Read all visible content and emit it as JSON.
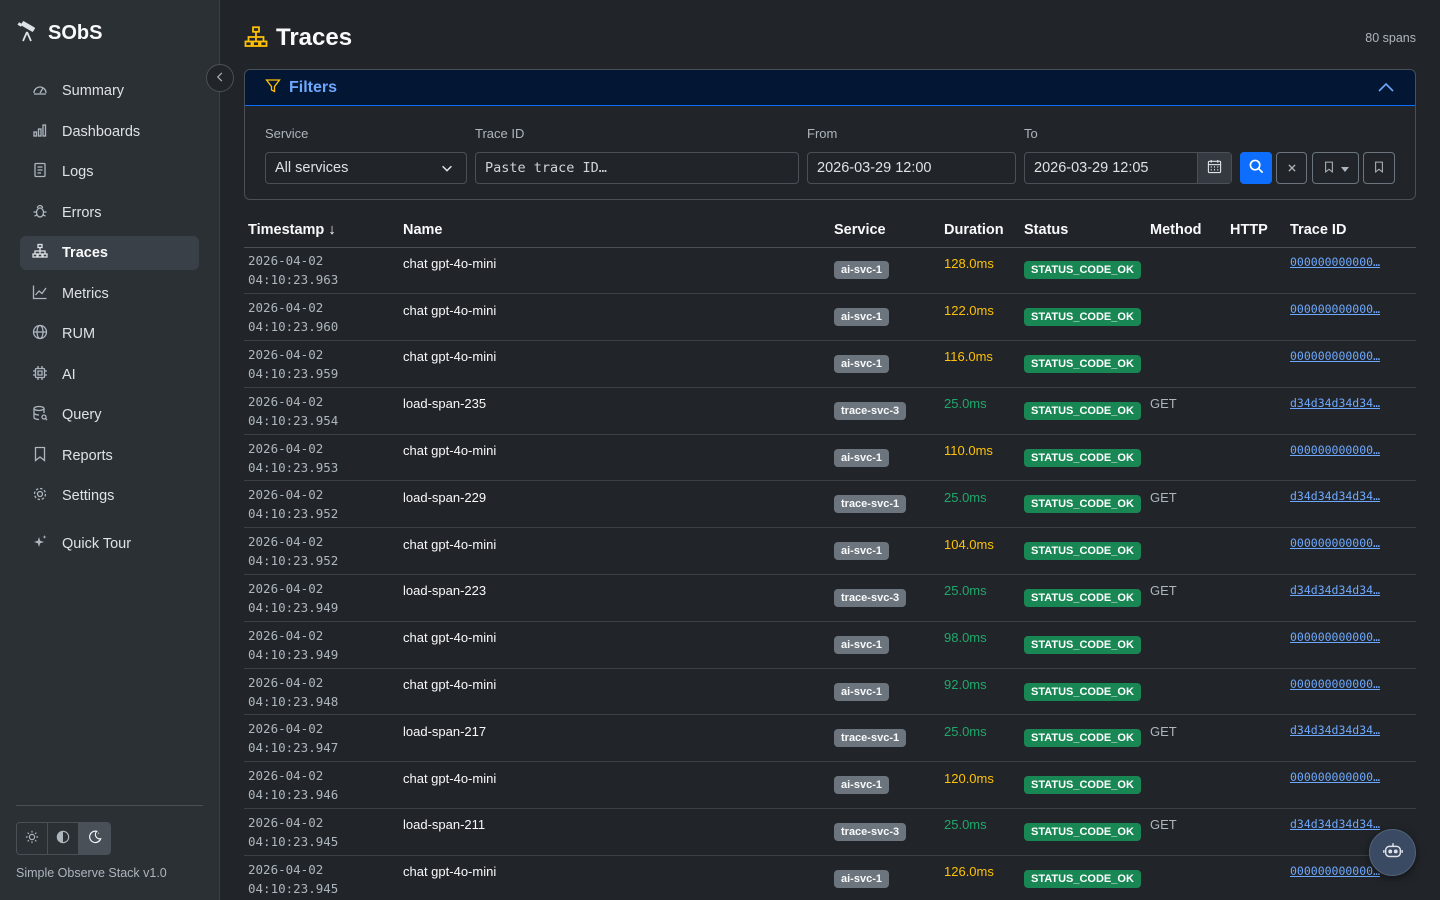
{
  "app": {
    "name": "SObS",
    "version": "Simple Observe Stack v1.0"
  },
  "sidebar": {
    "items": [
      {
        "label": "Summary",
        "icon": "gauge-icon"
      },
      {
        "label": "Dashboards",
        "icon": "bar-chart-icon"
      },
      {
        "label": "Logs",
        "icon": "file-text-icon"
      },
      {
        "label": "Errors",
        "icon": "bug-icon"
      },
      {
        "label": "Traces",
        "icon": "diagram-icon",
        "active": true
      },
      {
        "label": "Metrics",
        "icon": "graph-up-icon"
      },
      {
        "label": "RUM",
        "icon": "globe-icon"
      },
      {
        "label": "AI",
        "icon": "cpu-icon"
      },
      {
        "label": "Query",
        "icon": "database-icon"
      },
      {
        "label": "Reports",
        "icon": "bookmark-icon"
      },
      {
        "label": "Settings",
        "icon": "gear-icon"
      }
    ],
    "quick_tour": "Quick Tour"
  },
  "page": {
    "title": "Traces",
    "span_count": "80 spans"
  },
  "filters": {
    "title": "Filters",
    "service": {
      "label": "Service",
      "value": "All services"
    },
    "trace_id": {
      "label": "Trace ID",
      "placeholder": "Paste trace ID…"
    },
    "from": {
      "label": "From",
      "value": "2026-03-29 12:00"
    },
    "to": {
      "label": "To",
      "value": "2026-03-29 12:05"
    }
  },
  "table": {
    "columns": [
      "Timestamp ↓",
      "Name",
      "Service",
      "Duration",
      "Status",
      "Method",
      "HTTP",
      "Trace ID"
    ],
    "rows": [
      {
        "date": "2026-04-02",
        "time": "04:10:23.963",
        "name": "chat gpt-4o-mini",
        "service": "ai-svc-1",
        "duration": "128.0ms",
        "slow": true,
        "status": "STATUS_CODE_OK",
        "method": "",
        "http": "",
        "trace_id": "000000000000…"
      },
      {
        "date": "2026-04-02",
        "time": "04:10:23.960",
        "name": "chat gpt-4o-mini",
        "service": "ai-svc-1",
        "duration": "122.0ms",
        "slow": true,
        "status": "STATUS_CODE_OK",
        "method": "",
        "http": "",
        "trace_id": "000000000000…"
      },
      {
        "date": "2026-04-02",
        "time": "04:10:23.959",
        "name": "chat gpt-4o-mini",
        "service": "ai-svc-1",
        "duration": "116.0ms",
        "slow": true,
        "status": "STATUS_CODE_OK",
        "method": "",
        "http": "",
        "trace_id": "000000000000…"
      },
      {
        "date": "2026-04-02",
        "time": "04:10:23.954",
        "name": "load-span-235",
        "service": "trace-svc-3",
        "duration": "25.0ms",
        "slow": false,
        "status": "STATUS_CODE_OK",
        "method": "GET",
        "http": "",
        "trace_id": "d34d34d34d34…"
      },
      {
        "date": "2026-04-02",
        "time": "04:10:23.953",
        "name": "chat gpt-4o-mini",
        "service": "ai-svc-1",
        "duration": "110.0ms",
        "slow": true,
        "status": "STATUS_CODE_OK",
        "method": "",
        "http": "",
        "trace_id": "000000000000…"
      },
      {
        "date": "2026-04-02",
        "time": "04:10:23.952",
        "name": "load-span-229",
        "service": "trace-svc-1",
        "duration": "25.0ms",
        "slow": false,
        "status": "STATUS_CODE_OK",
        "method": "GET",
        "http": "",
        "trace_id": "d34d34d34d34…"
      },
      {
        "date": "2026-04-02",
        "time": "04:10:23.952",
        "name": "chat gpt-4o-mini",
        "service": "ai-svc-1",
        "duration": "104.0ms",
        "slow": true,
        "status": "STATUS_CODE_OK",
        "method": "",
        "http": "",
        "trace_id": "000000000000…"
      },
      {
        "date": "2026-04-02",
        "time": "04:10:23.949",
        "name": "load-span-223",
        "service": "trace-svc-3",
        "duration": "25.0ms",
        "slow": false,
        "status": "STATUS_CODE_OK",
        "method": "GET",
        "http": "",
        "trace_id": "d34d34d34d34…"
      },
      {
        "date": "2026-04-02",
        "time": "04:10:23.949",
        "name": "chat gpt-4o-mini",
        "service": "ai-svc-1",
        "duration": "98.0ms",
        "slow": false,
        "status": "STATUS_CODE_OK",
        "method": "",
        "http": "",
        "trace_id": "000000000000…"
      },
      {
        "date": "2026-04-02",
        "time": "04:10:23.948",
        "name": "chat gpt-4o-mini",
        "service": "ai-svc-1",
        "duration": "92.0ms",
        "slow": false,
        "status": "STATUS_CODE_OK",
        "method": "",
        "http": "",
        "trace_id": "000000000000…"
      },
      {
        "date": "2026-04-02",
        "time": "04:10:23.947",
        "name": "load-span-217",
        "service": "trace-svc-1",
        "duration": "25.0ms",
        "slow": false,
        "status": "STATUS_CODE_OK",
        "method": "GET",
        "http": "",
        "trace_id": "d34d34d34d34…"
      },
      {
        "date": "2026-04-02",
        "time": "04:10:23.946",
        "name": "chat gpt-4o-mini",
        "service": "ai-svc-1",
        "duration": "120.0ms",
        "slow": true,
        "status": "STATUS_CODE_OK",
        "method": "",
        "http": "",
        "trace_id": "000000000000…"
      },
      {
        "date": "2026-04-02",
        "time": "04:10:23.945",
        "name": "load-span-211",
        "service": "trace-svc-3",
        "duration": "25.0ms",
        "slow": false,
        "status": "STATUS_CODE_OK",
        "method": "GET",
        "http": "",
        "trace_id": "d34d34d34d34…"
      },
      {
        "date": "2026-04-02",
        "time": "04:10:23.945",
        "name": "chat gpt-4o-mini",
        "service": "ai-svc-1",
        "duration": "126.0ms",
        "slow": true,
        "status": "STATUS_CODE_OK",
        "method": "",
        "http": "",
        "trace_id": "000000000000…"
      }
    ]
  },
  "colors": {
    "accent": "#0d6efd",
    "slow": "#ffc107",
    "fast": "#20a86b",
    "ok": "#198754",
    "link": "#6ea8fe"
  }
}
